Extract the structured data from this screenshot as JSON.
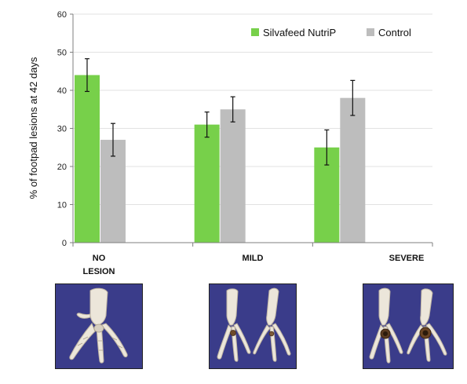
{
  "chart_data": {
    "type": "bar",
    "categories": [
      "NO LESION",
      "MILD",
      "SEVERE"
    ],
    "series": [
      {
        "name": "Silvafeed NutriP",
        "values": [
          44,
          31,
          25
        ],
        "errors": [
          4.3,
          3.3,
          4.6
        ],
        "color": "#77d04a"
      },
      {
        "name": "Control",
        "values": [
          27,
          35,
          38
        ],
        "errors": [
          4.3,
          3.3,
          4.6
        ],
        "color": "#bdbdbd"
      }
    ],
    "ylabel": "% of footpad lesions at 42 days",
    "ylim": [
      0,
      60
    ],
    "yticks": [
      0,
      10,
      20,
      30,
      40,
      50,
      60
    ],
    "grid": true,
    "legend_position": "top-right"
  },
  "category_labels": [
    {
      "line1": "NO",
      "line2": "LESION"
    },
    {
      "line1": "MILD",
      "line2": ""
    },
    {
      "line1": "SEVERE",
      "line2": ""
    }
  ],
  "photos": [
    {
      "icon": "healthy-foot-photo",
      "bg": "#3a3c8a"
    },
    {
      "icon": "mild-lesion-feet-photo",
      "bg": "#3a3c8a"
    },
    {
      "icon": "severe-lesion-feet-photo",
      "bg": "#3a3c8a"
    }
  ]
}
